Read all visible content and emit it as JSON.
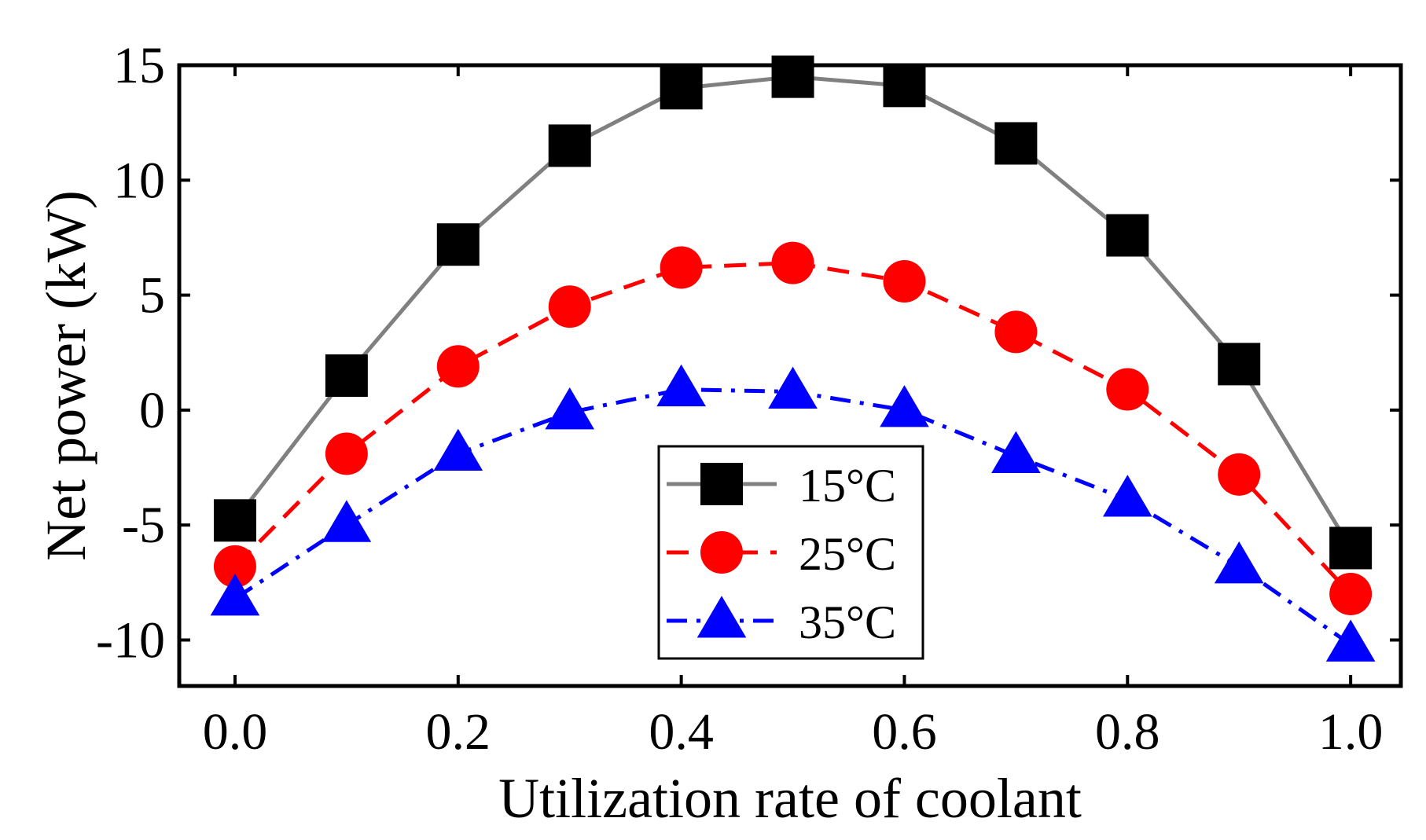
{
  "chart_data": {
    "type": "line",
    "title": "",
    "xlabel": "Utilization rate of coolant",
    "ylabel": "Net power (kW)",
    "xlim": [
      -0.05,
      1.045
    ],
    "ylim": [
      -12,
      15
    ],
    "xticks": [
      0.0,
      0.2,
      0.4,
      0.6,
      0.8,
      1.0
    ],
    "xtick_labels": [
      "0.0",
      "0.2",
      "0.4",
      "0.6",
      "0.8",
      "1.0"
    ],
    "yticks": [
      15,
      10,
      5,
      0,
      -5,
      -10
    ],
    "ytick_labels": [
      "15",
      "10",
      "5",
      "0",
      "-5",
      "-10"
    ],
    "grid": false,
    "legend_position": "bottom-center",
    "x": [
      0.0,
      0.1,
      0.2,
      0.3,
      0.4,
      0.5,
      0.6,
      0.7,
      0.8,
      0.9,
      1.0
    ],
    "series": [
      {
        "name": "15°C",
        "color": "#808080",
        "marker_color": "#000000",
        "marker": "square",
        "linestyle": "solid",
        "values": [
          -4.8,
          1.5,
          7.2,
          11.5,
          14.0,
          14.5,
          14.1,
          11.6,
          7.6,
          2.0,
          -6.0
        ]
      },
      {
        "name": "25°C",
        "color": "#ff0000",
        "marker_color": "#ff0000",
        "marker": "circle",
        "linestyle": "dashed",
        "values": [
          -6.8,
          -1.9,
          1.9,
          4.5,
          6.2,
          6.4,
          5.6,
          3.4,
          0.9,
          -2.8,
          -8.0
        ]
      },
      {
        "name": "35°C",
        "color": "#0000ff",
        "marker_color": "#0000ff",
        "marker": "triangle",
        "linestyle": "dashdot",
        "values": [
          -8.2,
          -5.0,
          -1.9,
          -0.1,
          0.9,
          0.8,
          0.0,
          -2.0,
          -3.9,
          -6.8,
          -10.2
        ]
      }
    ]
  }
}
